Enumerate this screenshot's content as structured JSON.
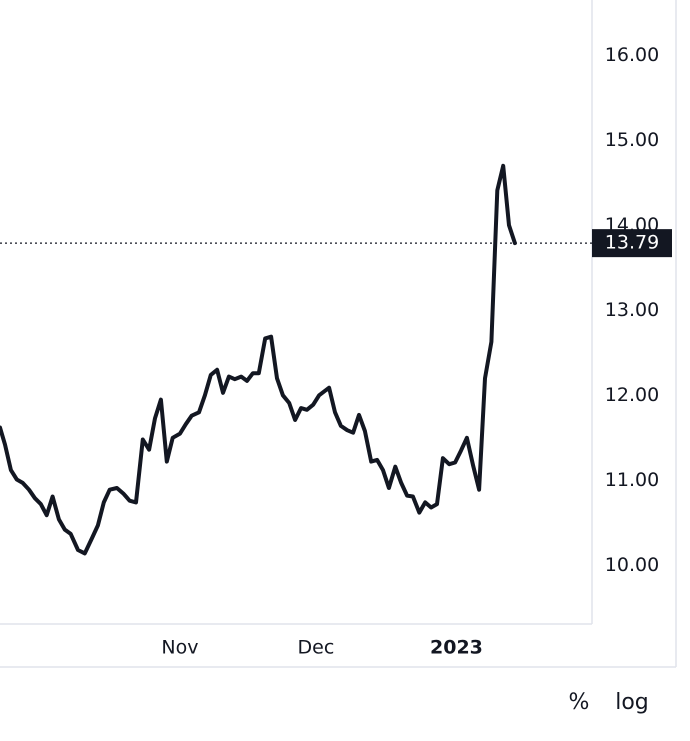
{
  "chart_data": {
    "type": "line",
    "x": [
      -8.7,
      -7.6,
      -6.3,
      -5.0,
      -3.7,
      -2.3,
      -1.0,
      0.3,
      1.6,
      2.9,
      4.3,
      5.6,
      6.9,
      8.5,
      10.0,
      11.6,
      12.9,
      14.2,
      15.5,
      17.1,
      18.6,
      19.9,
      21.3,
      22.8,
      24.2,
      25.5,
      26.8,
      28.1,
      29.4,
      31.0,
      32.3,
      33.6,
      35.2,
      36.5,
      37.8,
      39.2,
      40.5,
      41.8,
      43.1,
      44.5,
      45.8,
      47.1,
      48.4,
      49.8,
      51.1,
      52.4,
      53.7,
      55.1,
      56.4,
      57.7,
      59.0,
      60.4,
      61.7,
      63.9,
      65.2,
      66.5,
      67.9,
      69.2,
      70.5,
      71.8,
      73.2,
      74.5,
      75.8,
      77.1,
      78.5,
      79.8,
      81.1,
      82.4,
      83.8,
      85.1,
      86.4,
      87.7,
      89.0,
      90.4,
      91.7,
      93.0,
      94.3,
      95.7,
      97.0,
      98.3,
      99.7,
      101.0,
      102.3,
      103.6,
      104.9
    ],
    "series": [
      {
        "color": "#131722",
        "values": [
          11.62,
          11.42,
          11.12,
          11.01,
          10.97,
          10.89,
          10.79,
          10.72,
          10.59,
          10.81,
          10.54,
          10.42,
          10.37,
          10.18,
          10.14,
          10.32,
          10.47,
          10.74,
          10.89,
          10.91,
          10.84,
          10.76,
          10.74,
          11.48,
          11.36,
          11.73,
          11.95,
          11.22,
          11.5,
          11.55,
          11.66,
          11.76,
          11.8,
          12.0,
          12.24,
          12.3,
          12.03,
          12.22,
          12.19,
          12.22,
          12.17,
          12.26,
          12.26,
          12.67,
          12.69,
          12.2,
          12.0,
          11.91,
          11.71,
          11.85,
          11.83,
          11.89,
          12.0,
          12.09,
          11.8,
          11.64,
          11.59,
          11.56,
          11.77,
          11.58,
          11.22,
          11.24,
          11.12,
          10.91,
          11.16,
          10.97,
          10.82,
          10.81,
          10.62,
          10.74,
          10.68,
          10.72,
          11.26,
          11.19,
          11.21,
          11.35,
          11.5,
          11.17,
          10.89,
          12.2,
          12.63,
          14.41,
          14.7,
          14.0,
          13.79
        ]
      }
    ],
    "xlim": [
      -8.7,
      121.9
    ],
    "xticks": [
      {
        "value": 31,
        "label": "Nov"
      },
      {
        "value": 61,
        "label": "Dec"
      },
      {
        "value": 92,
        "label": "2023"
      }
    ],
    "ylim": [
      9.31,
      16.65
    ],
    "yticks": [
      {
        "value": 16,
        "label": "16.00"
      },
      {
        "value": 15,
        "label": "15.00"
      },
      {
        "value": 14,
        "label": "14.00"
      },
      {
        "value": 13,
        "label": "13.00"
      },
      {
        "value": 12,
        "label": "12.00"
      },
      {
        "value": 11,
        "label": "11.00"
      },
      {
        "value": 10,
        "label": "10.00"
      }
    ],
    "last_value": 13.79,
    "log_scale": false,
    "controls": [
      "%",
      "log"
    ]
  }
}
